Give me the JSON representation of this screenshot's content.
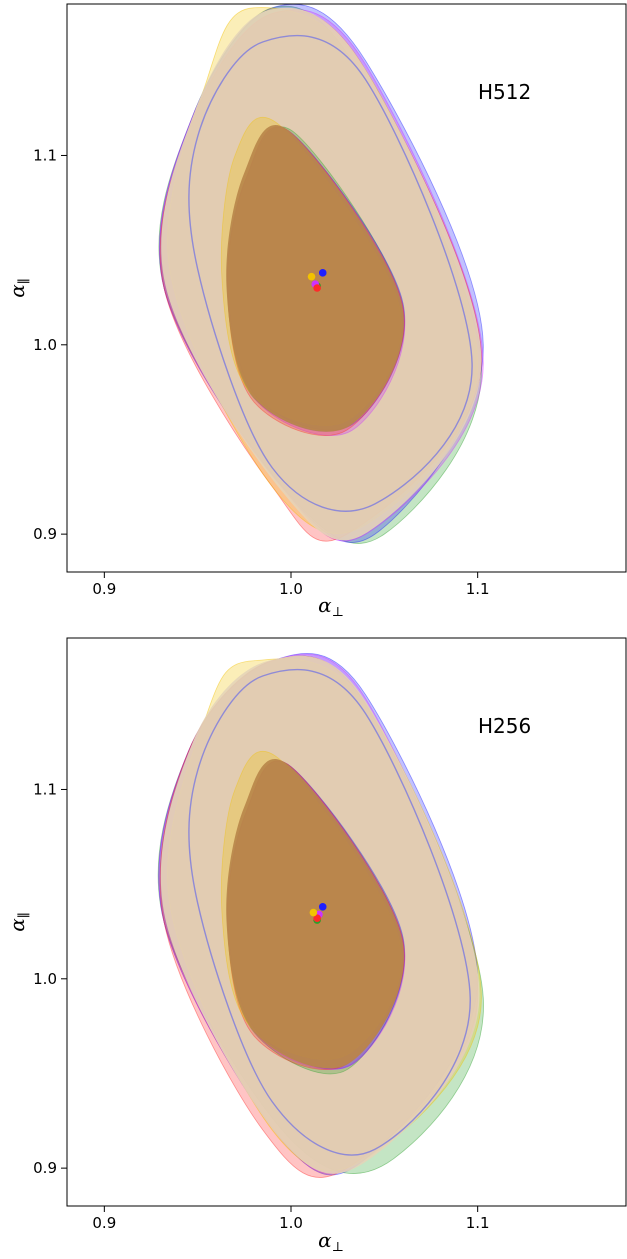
{
  "chart_data": [
    {
      "type": "contour",
      "panel_label": "H512",
      "xlabel": "α",
      "xlabel_sub": "⊥",
      "ylabel": "α",
      "ylabel_sub": "∥",
      "xlim": [
        0.88,
        1.18
      ],
      "ylim": [
        0.88,
        1.18
      ],
      "x_ticks": [
        0.9,
        1.0,
        1.1
      ],
      "y_ticks": [
        0.9,
        1.0,
        1.1
      ],
      "x_tick_labels": [
        "0.9",
        "1.0",
        "1.1"
      ],
      "y_tick_labels": [
        "0.9",
        "1.0",
        "1.1"
      ],
      "grid": false,
      "series": [
        {
          "color": "#2ca02c",
          "center": [
            1.018,
            1.04
          ],
          "outer": [
            [
              0.947,
              1.12
            ],
            [
              0.99,
              1.178
            ],
            [
              1.037,
              1.143
            ],
            [
              1.102,
              0.99
            ],
            [
              1.05,
              0.9
            ],
            [
              1.0,
              0.92
            ],
            [
              0.932,
              1.03
            ]
          ],
          "inner": [
            [
              0.976,
              1.088
            ],
            [
              1.002,
              1.112
            ],
            [
              1.06,
              1.02
            ],
            [
              1.03,
              0.957
            ],
            [
              0.98,
              0.972
            ],
            [
              0.966,
              1.03
            ]
          ],
          "center_point": [
            1.014,
            1.031
          ]
        },
        {
          "color": "#1f1fff",
          "center": [
            1.018,
            1.041
          ],
          "outer": [
            [
              0.947,
              1.12
            ],
            [
              0.99,
              1.178
            ],
            [
              1.04,
              1.15
            ],
            [
              1.103,
              1.0
            ],
            [
              1.045,
              0.9
            ],
            [
              0.995,
              0.925
            ],
            [
              0.932,
              1.03
            ]
          ],
          "inner": [
            [
              0.976,
              1.088
            ],
            [
              1.0,
              1.112
            ],
            [
              1.06,
              1.022
            ],
            [
              1.033,
              0.958
            ],
            [
              0.982,
              0.972
            ],
            [
              0.966,
              1.032
            ]
          ],
          "center_point": [
            1.017,
            1.038
          ]
        },
        {
          "color": "#cc33ff",
          "center": [
            1.018,
            1.04
          ],
          "outer": [
            [
              0.947,
              1.12
            ],
            [
              0.99,
              1.175
            ],
            [
              1.04,
              1.148
            ],
            [
              1.103,
              0.99
            ],
            [
              1.04,
              0.9
            ],
            [
              0.995,
              0.925
            ],
            [
              0.932,
              1.03
            ]
          ],
          "inner": [
            [
              0.976,
              1.088
            ],
            [
              1.0,
              1.112
            ],
            [
              1.06,
              1.02
            ],
            [
              1.033,
              0.955
            ],
            [
              0.982,
              0.97
            ],
            [
              0.966,
              1.03
            ]
          ],
          "center_point": [
            1.013,
            1.032
          ]
        },
        {
          "color": "#ff2a2a",
          "center": [
            1.017,
            1.039
          ],
          "outer": [
            [
              0.947,
              1.118
            ],
            [
              0.99,
              1.175
            ],
            [
              1.04,
              1.145
            ],
            [
              1.102,
              0.99
            ],
            [
              1.03,
              0.9
            ],
            [
              0.99,
              0.925
            ],
            [
              0.932,
              1.03
            ]
          ],
          "inner": [
            [
              0.976,
              1.088
            ],
            [
              1.0,
              1.112
            ],
            [
              1.06,
              1.02
            ],
            [
              1.03,
              0.955
            ],
            [
              0.98,
              0.97
            ],
            [
              0.966,
              1.03
            ]
          ],
          "center_point": [
            1.014,
            1.03
          ]
        },
        {
          "color": "#f2c200",
          "center": [
            1.015,
            1.04
          ],
          "outer": [
            [
              0.955,
              1.14
            ],
            [
              0.98,
              1.178
            ],
            [
              1.04,
              1.145
            ],
            [
              1.1,
              0.99
            ],
            [
              1.04,
              0.905
            ],
            [
              0.99,
              0.925
            ],
            [
              0.935,
              1.04
            ]
          ],
          "inner": [
            [
              0.97,
              1.1
            ],
            [
              0.995,
              1.115
            ],
            [
              1.058,
              1.02
            ],
            [
              1.03,
              0.96
            ],
            [
              0.978,
              0.975
            ],
            [
              0.963,
              1.035
            ]
          ],
          "center_point": [
            1.011,
            1.036
          ]
        }
      ],
      "filled_overlay": {
        "outer_color": "#e4d4b8",
        "inner_color": "#b9874a"
      },
      "contour_line": {
        "color": "#8f8ad6",
        "points": [
          [
            0.95,
            1.11
          ],
          [
            0.985,
            1.16
          ],
          [
            1.04,
            1.14
          ],
          [
            1.097,
            0.99
          ],
          [
            1.045,
            0.916
          ],
          [
            0.99,
            0.935
          ],
          [
            0.95,
            1.04
          ]
        ]
      }
    },
    {
      "type": "contour",
      "panel_label": "H256",
      "xlabel": "α",
      "xlabel_sub": "⊥",
      "ylabel": "α",
      "ylabel_sub": "∥",
      "xlim": [
        0.88,
        1.18
      ],
      "ylim": [
        0.88,
        1.18
      ],
      "x_ticks": [
        0.9,
        1.0,
        1.1
      ],
      "y_ticks": [
        0.9,
        1.0,
        1.1
      ],
      "x_tick_labels": [
        "0.9",
        "1.0",
        "1.1"
      ],
      "y_tick_labels": [
        "0.9",
        "1.0",
        "1.1"
      ],
      "grid": false,
      "series": [
        {
          "color": "#2ca02c",
          "center": [
            1.018,
            1.04
          ],
          "outer": [
            [
              0.945,
              1.12
            ],
            [
              0.99,
              1.168
            ],
            [
              1.04,
              1.145
            ],
            [
              1.103,
              0.99
            ],
            [
              1.055,
              0.905
            ],
            [
              1.0,
              0.915
            ],
            [
              0.932,
              1.03
            ]
          ],
          "inner": [
            [
              0.976,
              1.088
            ],
            [
              1.0,
              1.112
            ],
            [
              1.06,
              1.02
            ],
            [
              1.03,
              0.952
            ],
            [
              0.98,
              0.972
            ],
            [
              0.966,
              1.03
            ]
          ],
          "center_point": [
            1.014,
            1.031
          ]
        },
        {
          "color": "#1f1fff",
          "center": [
            1.018,
            1.041
          ],
          "outer": [
            [
              0.945,
              1.12
            ],
            [
              0.99,
              1.168
            ],
            [
              1.04,
              1.15
            ],
            [
              1.1,
              1.0
            ],
            [
              1.04,
              0.905
            ],
            [
              0.995,
              0.915
            ],
            [
              0.932,
              1.03
            ]
          ],
          "inner": [
            [
              0.976,
              1.088
            ],
            [
              1.0,
              1.112
            ],
            [
              1.06,
              1.022
            ],
            [
              1.033,
              0.955
            ],
            [
              0.982,
              0.972
            ],
            [
              0.966,
              1.032
            ]
          ],
          "center_point": [
            1.017,
            1.038
          ]
        },
        {
          "color": "#cc33ff",
          "center": [
            1.018,
            1.04
          ],
          "outer": [
            [
              0.945,
              1.12
            ],
            [
              0.99,
              1.168
            ],
            [
              1.04,
              1.148
            ],
            [
              1.1,
              0.99
            ],
            [
              1.04,
              0.905
            ],
            [
              0.995,
              0.915
            ],
            [
              0.932,
              1.03
            ]
          ],
          "inner": [
            [
              0.976,
              1.088
            ],
            [
              1.0,
              1.112
            ],
            [
              1.06,
              1.02
            ],
            [
              1.033,
              0.955
            ],
            [
              0.982,
              0.97
            ],
            [
              0.966,
              1.03
            ]
          ],
          "center_point": [
            1.015,
            1.034
          ]
        },
        {
          "color": "#ff2a2a",
          "center": [
            1.017,
            1.039
          ],
          "outer": [
            [
              0.945,
              1.12
            ],
            [
              0.99,
              1.168
            ],
            [
              1.04,
              1.145
            ],
            [
              1.1,
              0.99
            ],
            [
              1.03,
              0.9
            ],
            [
              0.985,
              0.92
            ],
            [
              0.932,
              1.03
            ]
          ],
          "inner": [
            [
              0.976,
              1.088
            ],
            [
              1.0,
              1.112
            ],
            [
              1.06,
              1.02
            ],
            [
              1.03,
              0.955
            ],
            [
              0.98,
              0.97
            ],
            [
              0.966,
              1.03
            ]
          ],
          "center_point": [
            1.014,
            1.032
          ]
        },
        {
          "color": "#f2c200",
          "center": [
            1.015,
            1.04
          ],
          "outer": [
            [
              0.955,
              1.14
            ],
            [
              0.98,
              1.168
            ],
            [
              1.04,
              1.145
            ],
            [
              1.102,
              0.99
            ],
            [
              1.04,
              0.905
            ],
            [
              0.99,
              0.92
            ],
            [
              0.935,
              1.04
            ]
          ],
          "inner": [
            [
              0.97,
              1.1
            ],
            [
              0.995,
              1.115
            ],
            [
              1.058,
              1.02
            ],
            [
              1.03,
              0.96
            ],
            [
              0.978,
              0.975
            ],
            [
              0.963,
              1.035
            ]
          ],
          "center_point": [
            1.012,
            1.035
          ]
        }
      ],
      "filled_overlay": {
        "outer_color": "#e4d4b8",
        "inner_color": "#b9874a"
      },
      "contour_line": {
        "color": "#8f8ad6",
        "points": [
          [
            0.95,
            1.11
          ],
          [
            0.985,
            1.16
          ],
          [
            1.04,
            1.14
          ],
          [
            1.096,
            0.99
          ],
          [
            1.045,
            0.91
          ],
          [
            0.99,
            0.935
          ],
          [
            0.95,
            1.04
          ]
        ]
      }
    }
  ]
}
